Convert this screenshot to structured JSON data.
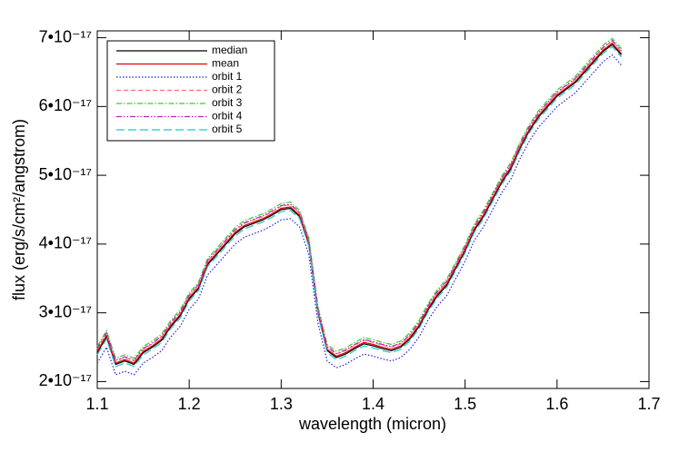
{
  "chart_data": {
    "type": "line",
    "xlabel": "wavelength (micron)",
    "ylabel": "flux (erg/s/cm²/angstrom)",
    "xlim": [
      1.1,
      1.7
    ],
    "xticks": [
      1.1,
      1.2,
      1.3,
      1.4,
      1.5,
      1.6,
      1.7
    ],
    "ylim": [
      1.9e-17,
      7.1e-17
    ],
    "yticks": [
      {
        "value": 2e-17,
        "label": "2•10⁻¹⁷"
      },
      {
        "value": 3e-17,
        "label": "3•10⁻¹⁷"
      },
      {
        "value": 4e-17,
        "label": "4•10⁻¹⁷"
      },
      {
        "value": 5e-17,
        "label": "5•10⁻¹⁷"
      },
      {
        "value": 6e-17,
        "label": "6•10⁻¹⁷"
      },
      {
        "value": 7e-17,
        "label": "7•10⁻¹⁷"
      }
    ],
    "legend": "upper left",
    "x": [
      1.1,
      1.11,
      1.12,
      1.13,
      1.14,
      1.15,
      1.16,
      1.17,
      1.18,
      1.19,
      1.2,
      1.21,
      1.22,
      1.23,
      1.24,
      1.25,
      1.26,
      1.27,
      1.28,
      1.29,
      1.3,
      1.31,
      1.32,
      1.33,
      1.34,
      1.35,
      1.36,
      1.37,
      1.38,
      1.39,
      1.4,
      1.41,
      1.42,
      1.43,
      1.44,
      1.45,
      1.46,
      1.47,
      1.48,
      1.49,
      1.5,
      1.51,
      1.52,
      1.53,
      1.54,
      1.55,
      1.56,
      1.57,
      1.58,
      1.59,
      1.6,
      1.61,
      1.62,
      1.63,
      1.64,
      1.65,
      1.66,
      1.67
    ],
    "series": [
      {
        "name": "median",
        "color": "#000000",
        "dash": "solid",
        "values": [
          2.42e-17,
          2.65e-17,
          2.25e-17,
          2.3e-17,
          2.25e-17,
          2.42e-17,
          2.5e-17,
          2.6e-17,
          2.8e-17,
          2.95e-17,
          3.2e-17,
          3.35e-17,
          3.7e-17,
          3.85e-17,
          4e-17,
          4.15e-17,
          4.25e-17,
          4.3e-17,
          4.35e-17,
          4.42e-17,
          4.5e-17,
          4.52e-17,
          4.4e-17,
          4e-17,
          3e-17,
          2.45e-17,
          2.35e-17,
          2.4e-17,
          2.48e-17,
          2.55e-17,
          2.52e-17,
          2.48e-17,
          2.45e-17,
          2.5e-17,
          2.62e-17,
          2.8e-17,
          3.05e-17,
          3.25e-17,
          3.4e-17,
          3.65e-17,
          3.9e-17,
          4.2e-17,
          4.4e-17,
          4.65e-17,
          4.9e-17,
          5.1e-17,
          5.4e-17,
          5.65e-17,
          5.85e-17,
          6e-17,
          6.15e-17,
          6.25e-17,
          6.35e-17,
          6.5e-17,
          6.65e-17,
          6.8e-17,
          6.9e-17,
          6.75e-17
        ]
      },
      {
        "name": "mean",
        "color": "#e00000",
        "dash": "solid",
        "values": [
          2.44e-17,
          2.67e-17,
          2.27e-17,
          2.32e-17,
          2.27e-17,
          2.44e-17,
          2.52e-17,
          2.62e-17,
          2.82e-17,
          2.97e-17,
          3.22e-17,
          3.37e-17,
          3.72e-17,
          3.87e-17,
          4.02e-17,
          4.17e-17,
          4.27e-17,
          4.32e-17,
          4.37e-17,
          4.44e-17,
          4.52e-17,
          4.54e-17,
          4.42e-17,
          4.02e-17,
          3.02e-17,
          2.47e-17,
          2.37e-17,
          2.42e-17,
          2.5e-17,
          2.57e-17,
          2.54e-17,
          2.5e-17,
          2.47e-17,
          2.52e-17,
          2.64e-17,
          2.82e-17,
          3.07e-17,
          3.27e-17,
          3.42e-17,
          3.67e-17,
          3.92e-17,
          4.22e-17,
          4.42e-17,
          4.67e-17,
          4.92e-17,
          5.12e-17,
          5.42e-17,
          5.67e-17,
          5.87e-17,
          6.02e-17,
          6.17e-17,
          6.27e-17,
          6.37e-17,
          6.52e-17,
          6.67e-17,
          6.82e-17,
          6.92e-17,
          6.77e-17
        ]
      },
      {
        "name": "orbit 1",
        "color": "#2020e0",
        "dash": "dotted",
        "values": [
          2.27e-17,
          2.5e-17,
          2.1e-17,
          2.15e-17,
          2.1e-17,
          2.27e-17,
          2.35e-17,
          2.45e-17,
          2.65e-17,
          2.8e-17,
          3.05e-17,
          3.2e-17,
          3.55e-17,
          3.7e-17,
          3.85e-17,
          4e-17,
          4.1e-17,
          4.15e-17,
          4.2e-17,
          4.27e-17,
          4.35e-17,
          4.37e-17,
          4.25e-17,
          3.85e-17,
          2.85e-17,
          2.3e-17,
          2.2e-17,
          2.25e-17,
          2.33e-17,
          2.4e-17,
          2.37e-17,
          2.33e-17,
          2.3e-17,
          2.35e-17,
          2.47e-17,
          2.65e-17,
          2.9e-17,
          3.1e-17,
          3.25e-17,
          3.5e-17,
          3.75e-17,
          4.05e-17,
          4.25e-17,
          4.5e-17,
          4.75e-17,
          4.95e-17,
          5.25e-17,
          5.5e-17,
          5.7e-17,
          5.85e-17,
          6e-17,
          6.1e-17,
          6.2e-17,
          6.35e-17,
          6.5e-17,
          6.65e-17,
          6.75e-17,
          6.6e-17
        ]
      },
      {
        "name": "orbit 2",
        "color": "#ff7070",
        "dash": "dashed",
        "values": [
          2.47e-17,
          2.7e-17,
          2.3e-17,
          2.35e-17,
          2.3e-17,
          2.47e-17,
          2.55e-17,
          2.65e-17,
          2.85e-17,
          3e-17,
          3.25e-17,
          3.4e-17,
          3.75e-17,
          3.9e-17,
          4.05e-17,
          4.2e-17,
          4.3e-17,
          4.35e-17,
          4.4e-17,
          4.47e-17,
          4.55e-17,
          4.57e-17,
          4.45e-17,
          4.05e-17,
          3.05e-17,
          2.5e-17,
          2.4e-17,
          2.45e-17,
          2.53e-17,
          2.6e-17,
          2.57e-17,
          2.53e-17,
          2.5e-17,
          2.55e-17,
          2.67e-17,
          2.85e-17,
          3.1e-17,
          3.3e-17,
          3.45e-17,
          3.7e-17,
          3.95e-17,
          4.25e-17,
          4.45e-17,
          4.7e-17,
          4.95e-17,
          5.15e-17,
          5.45e-17,
          5.7e-17,
          5.9e-17,
          6.05e-17,
          6.2e-17,
          6.3e-17,
          6.4e-17,
          6.55e-17,
          6.7e-17,
          6.85e-17,
          6.95e-17,
          6.8e-17
        ]
      },
      {
        "name": "orbit 3",
        "color": "#30d030",
        "dash": "dashdot",
        "values": [
          2.51e-17,
          2.74e-17,
          2.34e-17,
          2.39e-17,
          2.34e-17,
          2.51e-17,
          2.59e-17,
          2.69e-17,
          2.89e-17,
          3.04e-17,
          3.29e-17,
          3.44e-17,
          3.79e-17,
          3.94e-17,
          4.09e-17,
          4.24e-17,
          4.34e-17,
          4.39e-17,
          4.44e-17,
          4.51e-17,
          4.59e-17,
          4.61e-17,
          4.49e-17,
          4.09e-17,
          3.09e-17,
          2.54e-17,
          2.44e-17,
          2.49e-17,
          2.57e-17,
          2.64e-17,
          2.61e-17,
          2.57e-17,
          2.54e-17,
          2.59e-17,
          2.71e-17,
          2.89e-17,
          3.14e-17,
          3.34e-17,
          3.49e-17,
          3.74e-17,
          3.99e-17,
          4.29e-17,
          4.49e-17,
          4.74e-17,
          4.99e-17,
          5.19e-17,
          5.49e-17,
          5.74e-17,
          5.94e-17,
          6.09e-17,
          6.24e-17,
          6.34e-17,
          6.44e-17,
          6.59e-17,
          6.74e-17,
          6.89e-17,
          6.99e-17,
          6.84e-17
        ]
      },
      {
        "name": "orbit 4",
        "color": "#c020c0",
        "dash": "dashdotdot",
        "values": [
          2.48e-17,
          2.71e-17,
          2.31e-17,
          2.36e-17,
          2.31e-17,
          2.48e-17,
          2.56e-17,
          2.66e-17,
          2.86e-17,
          3.01e-17,
          3.26e-17,
          3.41e-17,
          3.76e-17,
          3.91e-17,
          4.06e-17,
          4.21e-17,
          4.31e-17,
          4.36e-17,
          4.41e-17,
          4.48e-17,
          4.56e-17,
          4.58e-17,
          4.46e-17,
          4.06e-17,
          3.06e-17,
          2.51e-17,
          2.41e-17,
          2.46e-17,
          2.54e-17,
          2.61e-17,
          2.58e-17,
          2.54e-17,
          2.51e-17,
          2.56e-17,
          2.68e-17,
          2.86e-17,
          3.11e-17,
          3.31e-17,
          3.46e-17,
          3.71e-17,
          3.96e-17,
          4.26e-17,
          4.46e-17,
          4.71e-17,
          4.96e-17,
          5.16e-17,
          5.46e-17,
          5.71e-17,
          5.91e-17,
          6.06e-17,
          6.21e-17,
          6.31e-17,
          6.41e-17,
          6.56e-17,
          6.71e-17,
          6.86e-17,
          6.96e-17,
          6.81e-17
        ]
      },
      {
        "name": "orbit 5",
        "color": "#20c8c8",
        "dash": "longdash",
        "values": [
          2.39e-17,
          2.62e-17,
          2.22e-17,
          2.27e-17,
          2.22e-17,
          2.39e-17,
          2.47e-17,
          2.57e-17,
          2.77e-17,
          2.92e-17,
          3.17e-17,
          3.32e-17,
          3.67e-17,
          3.82e-17,
          3.97e-17,
          4.12e-17,
          4.22e-17,
          4.27e-17,
          4.32e-17,
          4.39e-17,
          4.47e-17,
          4.49e-17,
          4.37e-17,
          3.97e-17,
          2.97e-17,
          2.42e-17,
          2.32e-17,
          2.37e-17,
          2.45e-17,
          2.52e-17,
          2.49e-17,
          2.45e-17,
          2.42e-17,
          2.47e-17,
          2.59e-17,
          2.77e-17,
          3.02e-17,
          3.22e-17,
          3.37e-17,
          3.62e-17,
          3.87e-17,
          4.17e-17,
          4.37e-17,
          4.62e-17,
          4.87e-17,
          5.07e-17,
          5.37e-17,
          5.62e-17,
          5.82e-17,
          5.97e-17,
          6.12e-17,
          6.22e-17,
          6.32e-17,
          6.47e-17,
          6.62e-17,
          6.77e-17,
          6.87e-17,
          6.72e-17
        ]
      }
    ]
  }
}
